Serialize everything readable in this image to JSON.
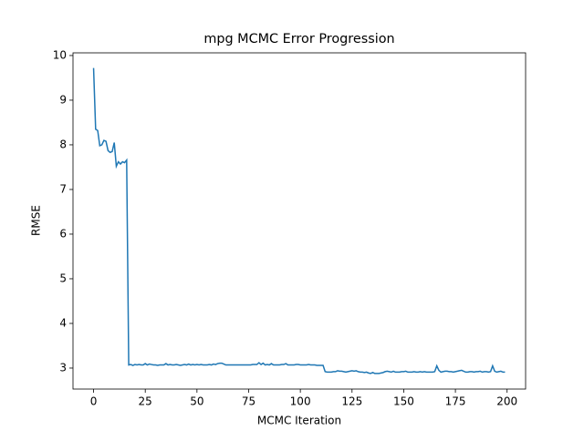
{
  "chart_data": {
    "type": "line",
    "title": "mpg MCMC Error Progression",
    "x_label": "MCMC Iteration",
    "y_label": "RMSE",
    "x": [
      0,
      1,
      2,
      3,
      4,
      5,
      6,
      7,
      8,
      9,
      10,
      11,
      12,
      13,
      14,
      15,
      16,
      17,
      18,
      19,
      20,
      21,
      22,
      23,
      24,
      25,
      26,
      27,
      28,
      29,
      30,
      31,
      32,
      33,
      34,
      35,
      36,
      37,
      38,
      39,
      40,
      41,
      42,
      43,
      44,
      45,
      46,
      47,
      48,
      49,
      50,
      51,
      52,
      53,
      54,
      55,
      56,
      57,
      58,
      59,
      60,
      61,
      62,
      63,
      64,
      65,
      66,
      67,
      68,
      69,
      70,
      71,
      72,
      73,
      74,
      75,
      76,
      77,
      78,
      79,
      80,
      81,
      82,
      83,
      84,
      85,
      86,
      87,
      88,
      89,
      90,
      91,
      92,
      93,
      94,
      95,
      96,
      97,
      98,
      99,
      100,
      101,
      102,
      103,
      104,
      105,
      106,
      107,
      108,
      109,
      110,
      111,
      112,
      113,
      114,
      115,
      116,
      117,
      118,
      119,
      120,
      121,
      122,
      123,
      124,
      125,
      126,
      127,
      128,
      129,
      130,
      131,
      132,
      133,
      134,
      135,
      136,
      137,
      138,
      139,
      140,
      141,
      142,
      143,
      144,
      145,
      146,
      147,
      148,
      149,
      150,
      151,
      152,
      153,
      154,
      155,
      156,
      157,
      158,
      159,
      160,
      161,
      162,
      163,
      164,
      165,
      166,
      167,
      168,
      169,
      170,
      171,
      172,
      173,
      174,
      175,
      176,
      177,
      178,
      179,
      180,
      181,
      182,
      183,
      184,
      185,
      186,
      187,
      188,
      189,
      190,
      191,
      192,
      193,
      194,
      195,
      196,
      197,
      198,
      199
    ],
    "series": [
      {
        "color": "#1f77b4",
        "values": [
          9.72,
          8.35,
          8.32,
          7.98,
          8.0,
          8.1,
          8.08,
          7.87,
          7.83,
          7.85,
          8.05,
          7.52,
          7.62,
          7.57,
          7.62,
          7.6,
          7.66,
          3.07,
          3.08,
          3.06,
          3.08,
          3.07,
          3.08,
          3.07,
          3.07,
          3.1,
          3.07,
          3.09,
          3.08,
          3.07,
          3.07,
          3.06,
          3.07,
          3.07,
          3.07,
          3.1,
          3.07,
          3.08,
          3.07,
          3.07,
          3.08,
          3.07,
          3.06,
          3.07,
          3.08,
          3.07,
          3.09,
          3.07,
          3.08,
          3.07,
          3.08,
          3.07,
          3.08,
          3.07,
          3.07,
          3.07,
          3.08,
          3.07,
          3.09,
          3.08,
          3.1,
          3.11,
          3.11,
          3.09,
          3.07,
          3.07,
          3.07,
          3.07,
          3.07,
          3.07,
          3.07,
          3.07,
          3.07,
          3.07,
          3.07,
          3.07,
          3.07,
          3.08,
          3.08,
          3.08,
          3.12,
          3.08,
          3.11,
          3.07,
          3.08,
          3.07,
          3.1,
          3.07,
          3.07,
          3.07,
          3.07,
          3.08,
          3.08,
          3.1,
          3.07,
          3.07,
          3.07,
          3.07,
          3.08,
          3.08,
          3.07,
          3.07,
          3.07,
          3.07,
          3.08,
          3.07,
          3.07,
          3.07,
          3.06,
          3.06,
          3.06,
          3.06,
          2.92,
          2.91,
          2.91,
          2.91,
          2.92,
          2.92,
          2.94,
          2.93,
          2.93,
          2.92,
          2.91,
          2.92,
          2.93,
          2.94,
          2.93,
          2.94,
          2.92,
          2.91,
          2.91,
          2.9,
          2.91,
          2.89,
          2.88,
          2.9,
          2.88,
          2.88,
          2.88,
          2.89,
          2.9,
          2.92,
          2.93,
          2.92,
          2.91,
          2.93,
          2.91,
          2.91,
          2.91,
          2.92,
          2.92,
          2.93,
          2.91,
          2.91,
          2.91,
          2.92,
          2.91,
          2.91,
          2.92,
          2.91,
          2.92,
          2.91,
          2.91,
          2.91,
          2.91,
          2.92,
          3.05,
          2.95,
          2.91,
          2.92,
          2.93,
          2.93,
          2.92,
          2.92,
          2.91,
          2.92,
          2.93,
          2.94,
          2.95,
          2.93,
          2.91,
          2.91,
          2.92,
          2.92,
          2.91,
          2.92,
          2.92,
          2.93,
          2.91,
          2.92,
          2.92,
          2.91,
          2.92,
          3.05,
          2.93,
          2.91,
          2.92,
          2.93,
          2.91,
          2.91
        ]
      }
    ],
    "xlim": [
      -9.95,
      208.95
    ],
    "xticks": [
      0,
      25,
      50,
      75,
      100,
      125,
      150,
      175,
      200
    ],
    "ylim": [
      2.53,
      10.06
    ],
    "yticks": [
      3,
      4,
      5,
      6,
      7,
      8,
      9,
      10
    ]
  }
}
